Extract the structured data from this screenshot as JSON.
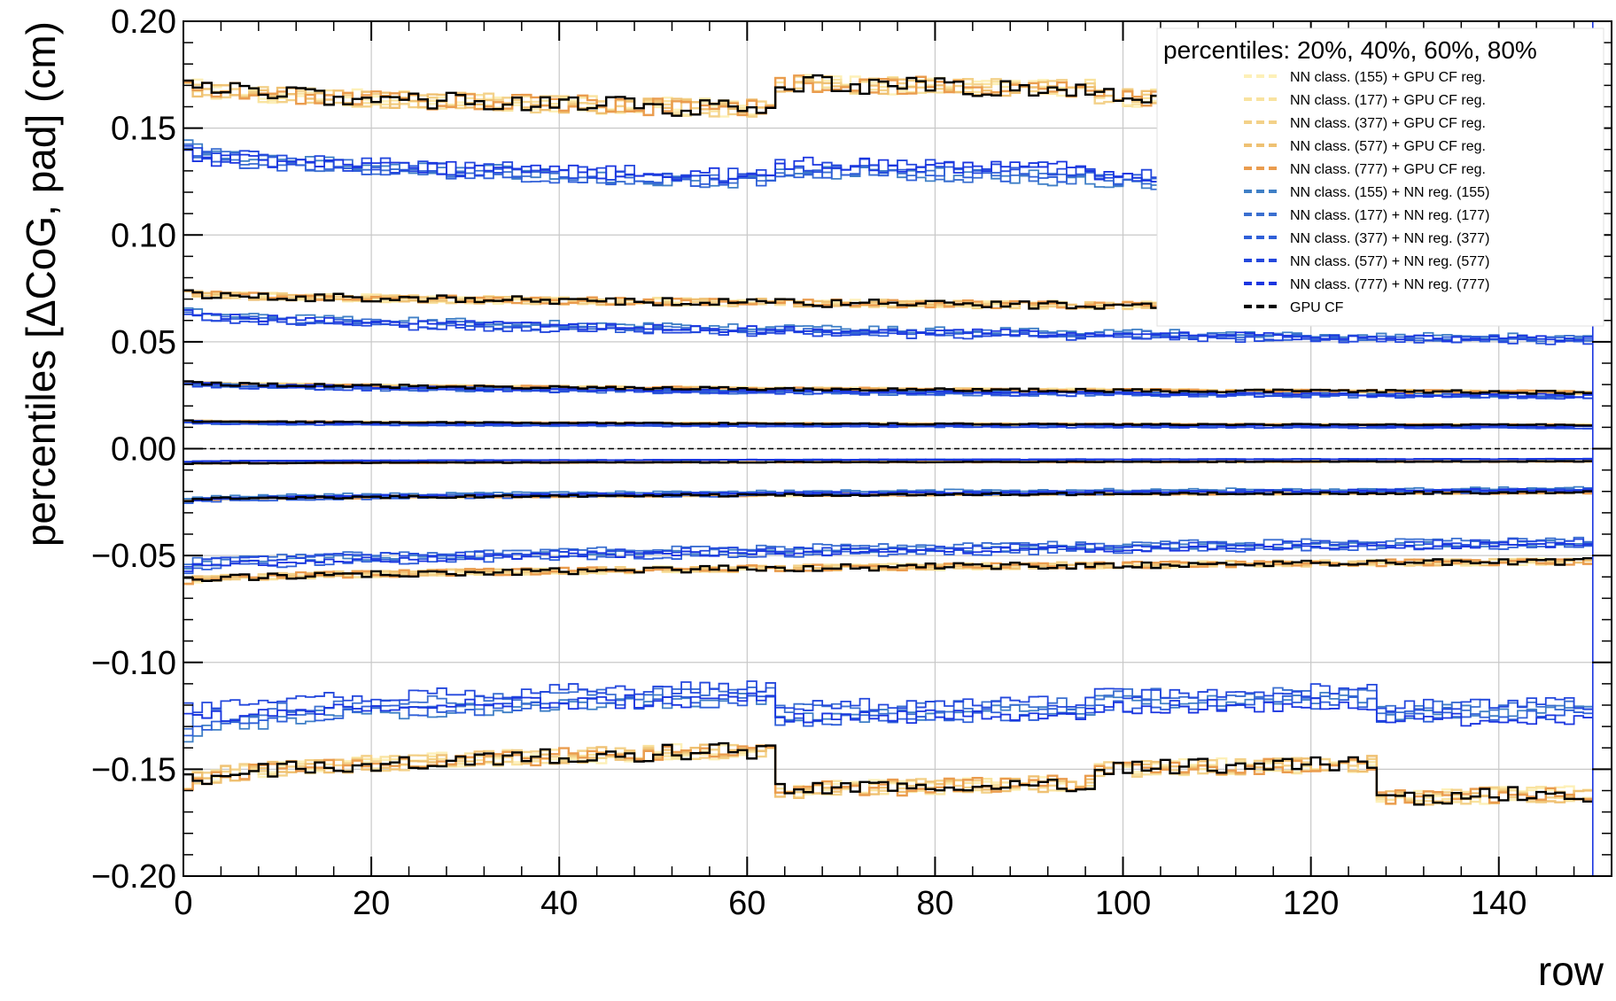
{
  "chart_data": {
    "type": "line",
    "xlabel": "row",
    "ylabel": "percentiles [ΔCoG, pad] (cm)",
    "xlim": [
      0,
      152
    ],
    "ylim": [
      -0.2,
      0.2
    ],
    "x_ticks": [
      0,
      20,
      40,
      60,
      80,
      100,
      120,
      140
    ],
    "y_ticks": [
      -0.2,
      -0.15,
      -0.1,
      -0.05,
      0.0,
      0.05,
      0.1,
      0.15,
      0.2
    ],
    "x_tick_labels": [
      "0",
      "20",
      "40",
      "60",
      "80",
      "100",
      "120",
      "140"
    ],
    "y_tick_labels": [
      "−0.20",
      "−0.15",
      "−0.10",
      "−0.05",
      "0.00",
      "0.05",
      "0.10",
      "0.15",
      "0.20"
    ],
    "grid": true,
    "legend_placement": "top-right",
    "legend_title": "percentiles: 20%, 40%, 60%, 80%",
    "reference_line": 0.0,
    "gap_steps": [
      63,
      97,
      127
    ],
    "series": [
      {
        "name": "NN class. (155) + GPU CF reg.",
        "color": "#fdf0b8",
        "group": "gpu_reg",
        "levels": [
          0.17,
          0.073,
          0.031,
          0.013,
          -0.007,
          -0.024,
          -0.062,
          -0.156
        ],
        "trend": [
          0.9,
          0.9,
          0.85,
          0.85,
          0.85,
          0.85,
          0.85,
          0.85
        ]
      },
      {
        "name": "NN class. (177) + GPU CF reg.",
        "color": "#f9e3a0",
        "group": "gpu_reg",
        "levels": [
          0.17,
          0.073,
          0.031,
          0.013,
          -0.007,
          -0.024,
          -0.062,
          -0.156
        ],
        "trend": [
          0.9,
          0.9,
          0.85,
          0.85,
          0.85,
          0.85,
          0.85,
          0.85
        ]
      },
      {
        "name": "NN class. (377) + GPU CF reg.",
        "color": "#f3d189",
        "group": "gpu_reg",
        "levels": [
          0.17,
          0.073,
          0.031,
          0.013,
          -0.007,
          -0.024,
          -0.062,
          -0.156
        ],
        "trend": [
          0.9,
          0.9,
          0.85,
          0.85,
          0.85,
          0.85,
          0.85,
          0.85
        ]
      },
      {
        "name": "NN class. (577) + GPU CF reg.",
        "color": "#efc173",
        "group": "gpu_reg",
        "levels": [
          0.17,
          0.073,
          0.031,
          0.013,
          -0.007,
          -0.024,
          -0.062,
          -0.156
        ],
        "trend": [
          0.9,
          0.9,
          0.85,
          0.85,
          0.85,
          0.85,
          0.85,
          0.85
        ]
      },
      {
        "name": "NN class. (777) + GPU CF reg.",
        "color": "#ea9c4e",
        "group": "gpu_reg",
        "levels": [
          0.17,
          0.073,
          0.031,
          0.013,
          -0.007,
          -0.024,
          -0.062,
          -0.156
        ],
        "trend": [
          0.9,
          0.9,
          0.85,
          0.85,
          0.85,
          0.85,
          0.85,
          0.85
        ]
      },
      {
        "name": "NN class. (155) + NN reg. (155)",
        "color": "#3f7fc6",
        "group": "nn_reg",
        "levels": [
          0.143,
          0.065,
          0.031,
          0.013,
          -0.006,
          -0.023,
          -0.055,
          -0.134
        ],
        "trend": [
          0.8,
          0.8,
          0.8,
          0.8,
          0.8,
          0.8,
          0.8,
          0.8
        ]
      },
      {
        "name": "NN class. (177) + NN reg. (177)",
        "color": "#3a6fd0",
        "group": "nn_reg",
        "levels": [
          0.141,
          0.064,
          0.03,
          0.012,
          -0.006,
          -0.024,
          -0.053,
          -0.128
        ],
        "trend": [
          0.82,
          0.8,
          0.8,
          0.8,
          0.8,
          0.8,
          0.8,
          0.82
        ]
      },
      {
        "name": "NN class. (377) + NN reg. (377)",
        "color": "#2f5fd8",
        "group": "nn_reg",
        "levels": [
          0.139,
          0.063,
          0.031,
          0.013,
          -0.006,
          -0.025,
          -0.057,
          -0.131
        ],
        "trend": [
          0.84,
          0.8,
          0.8,
          0.8,
          0.8,
          0.8,
          0.8,
          0.84
        ]
      },
      {
        "name": "NN class. (577) + NN reg. (577)",
        "color": "#2448dd",
        "group": "nn_reg",
        "levels": [
          0.14,
          0.062,
          0.03,
          0.012,
          -0.006,
          -0.024,
          -0.054,
          -0.122
        ],
        "trend": [
          0.86,
          0.8,
          0.8,
          0.8,
          0.8,
          0.8,
          0.8,
          0.86
        ]
      },
      {
        "name": "NN class. (777) + NN reg. (777)",
        "color": "#1a35e0",
        "group": "nn_reg",
        "levels": [
          0.138,
          0.064,
          0.031,
          0.013,
          -0.006,
          -0.024,
          -0.056,
          -0.127
        ],
        "trend": [
          0.88,
          0.8,
          0.8,
          0.8,
          0.8,
          0.8,
          0.8,
          0.88
        ]
      },
      {
        "name": "GPU CF",
        "color": "#000000",
        "group": "gpu",
        "levels": [
          0.17,
          0.073,
          0.031,
          0.013,
          -0.007,
          -0.024,
          -0.062,
          -0.156
        ],
        "trend": [
          0.9,
          0.9,
          0.85,
          0.85,
          0.85,
          0.85,
          0.85,
          0.85
        ]
      }
    ]
  }
}
